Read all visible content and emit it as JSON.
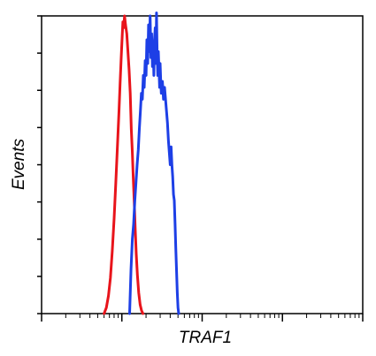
{
  "chart_data": {
    "type": "line",
    "title": "",
    "xlabel": "TRAF1",
    "ylabel": "Events",
    "x_scale": "log",
    "xlim": [
      1,
      10000
    ],
    "ylim": [
      0,
      100
    ],
    "y_ticks_labeled": false,
    "x_ticks_labeled": false,
    "grid": false,
    "legend": "none",
    "series": [
      {
        "color": "#e8141b",
        "points": [
          [
            6.0,
            0
          ],
          [
            6.4,
            2
          ],
          [
            6.8,
            6
          ],
          [
            7.2,
            12
          ],
          [
            7.6,
            21
          ],
          [
            8.0,
            32
          ],
          [
            8.4,
            44
          ],
          [
            8.8,
            56
          ],
          [
            9.2,
            68
          ],
          [
            9.5,
            77
          ],
          [
            9.8,
            86
          ],
          [
            10.1,
            93
          ],
          [
            10.3,
            98
          ],
          [
            10.5,
            96
          ],
          [
            10.8,
            100
          ],
          [
            11.1,
            97
          ],
          [
            11.5,
            94
          ],
          [
            11.9,
            88
          ],
          [
            12.3,
            82
          ],
          [
            12.7,
            74
          ],
          [
            13.1,
            62
          ],
          [
            13.5,
            54
          ],
          [
            13.9,
            45
          ],
          [
            14.3,
            37
          ],
          [
            14.7,
            28
          ],
          [
            15.1,
            20
          ],
          [
            15.6,
            13
          ],
          [
            16.2,
            7
          ],
          [
            16.9,
            3
          ],
          [
            17.6,
            1
          ],
          [
            18.3,
            0
          ]
        ]
      },
      {
        "color": "#1d3fe6",
        "points": [
          [
            12.5,
            0
          ],
          [
            13.0,
            15
          ],
          [
            13.5,
            25
          ],
          [
            14.0,
            30
          ],
          [
            14.5,
            38
          ],
          [
            15.0,
            44
          ],
          [
            15.5,
            50
          ],
          [
            16.0,
            55
          ],
          [
            16.5,
            62
          ],
          [
            17.0,
            68
          ],
          [
            17.5,
            74
          ],
          [
            18.0,
            72
          ],
          [
            18.5,
            80
          ],
          [
            19.0,
            76
          ],
          [
            19.5,
            85
          ],
          [
            20.0,
            80
          ],
          [
            20.5,
            92
          ],
          [
            21.0,
            84
          ],
          [
            21.5,
            97
          ],
          [
            22.0,
            88
          ],
          [
            22.5,
            100
          ],
          [
            23.0,
            86
          ],
          [
            23.5,
            94
          ],
          [
            24.0,
            83
          ],
          [
            24.5,
            91
          ],
          [
            25.0,
            80
          ],
          [
            25.5,
            92
          ],
          [
            26.0,
            96
          ],
          [
            26.5,
            84
          ],
          [
            27.0,
            101
          ],
          [
            27.5,
            88
          ],
          [
            28.0,
            80
          ],
          [
            28.5,
            88
          ],
          [
            29.0,
            82
          ],
          [
            29.5,
            76
          ],
          [
            30.0,
            84
          ],
          [
            30.5,
            78
          ],
          [
            31.0,
            74
          ],
          [
            32.0,
            78
          ],
          [
            33.0,
            72
          ],
          [
            34.0,
            76
          ],
          [
            35.0,
            72
          ],
          [
            36.0,
            68
          ],
          [
            37.0,
            64
          ],
          [
            38.0,
            58
          ],
          [
            39.0,
            54
          ],
          [
            40.0,
            50
          ],
          [
            41.0,
            56
          ],
          [
            42.0,
            50
          ],
          [
            43.0,
            46
          ],
          [
            44.0,
            40
          ],
          [
            45.0,
            38
          ],
          [
            46.0,
            30
          ],
          [
            47.0,
            22
          ],
          [
            48.0,
            14
          ],
          [
            49.0,
            7
          ],
          [
            50.0,
            2
          ],
          [
            51.0,
            0
          ]
        ]
      }
    ]
  }
}
